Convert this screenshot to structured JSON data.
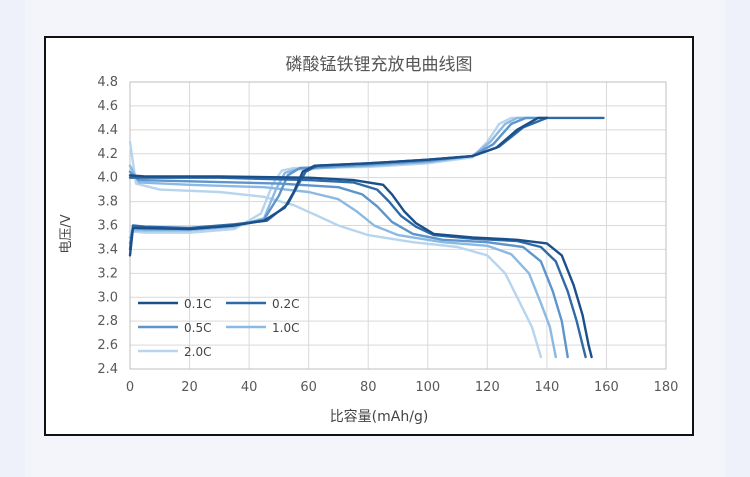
{
  "chart_data": {
    "type": "line",
    "title": "磷酸锰铁锂充放电曲线图",
    "xlabel": "比容量(mAh/g)",
    "ylabel": "电压/V",
    "xlim": [
      0,
      180
    ],
    "ylim": [
      2.4,
      4.8
    ],
    "xticks": [
      "0",
      "20",
      "40",
      "60",
      "80",
      "100",
      "120",
      "140",
      "160",
      "180"
    ],
    "yticks": [
      "2.4",
      "2.6",
      "2.8",
      "3.0",
      "3.2",
      "3.4",
      "3.6",
      "3.8",
      "4.0",
      "4.2",
      "4.4",
      "4.6",
      "4.8"
    ],
    "grid": true,
    "legend_position": "bottom-left",
    "colors": {
      "0.1C": "#1b4f8a",
      "0.2C": "#2f6aa6",
      "0.5C": "#5d95cc",
      "1.0C": "#8cb9e2",
      "2.0C": "#b7d5ef"
    },
    "series": [
      {
        "name": "0.1C",
        "charge": [
          [
            0,
            3.35
          ],
          [
            1,
            3.58
          ],
          [
            5,
            3.58
          ],
          [
            20,
            3.57
          ],
          [
            35,
            3.6
          ],
          [
            45,
            3.64
          ],
          [
            52,
            3.75
          ],
          [
            55,
            3.88
          ],
          [
            58,
            4.05
          ],
          [
            62,
            4.1
          ],
          [
            80,
            4.12
          ],
          [
            100,
            4.15
          ],
          [
            115,
            4.18
          ],
          [
            123,
            4.25
          ],
          [
            130,
            4.4
          ],
          [
            137,
            4.5
          ],
          [
            140,
            4.5
          ]
        ],
        "discharge": [
          [
            0,
            4.02
          ],
          [
            5,
            4.01
          ],
          [
            30,
            4.01
          ],
          [
            60,
            4.0
          ],
          [
            75,
            3.98
          ],
          [
            85,
            3.94
          ],
          [
            88,
            3.86
          ],
          [
            92,
            3.72
          ],
          [
            96,
            3.62
          ],
          [
            102,
            3.53
          ],
          [
            115,
            3.5
          ],
          [
            130,
            3.48
          ],
          [
            140,
            3.45
          ],
          [
            145,
            3.35
          ],
          [
            149,
            3.1
          ],
          [
            152,
            2.85
          ],
          [
            154,
            2.6
          ],
          [
            155,
            2.5
          ]
        ]
      },
      {
        "name": "0.2C",
        "charge": [
          [
            0,
            3.4
          ],
          [
            1,
            3.6
          ],
          [
            5,
            3.59
          ],
          [
            20,
            3.58
          ],
          [
            35,
            3.61
          ],
          [
            46,
            3.64
          ],
          [
            53,
            3.78
          ],
          [
            56,
            3.92
          ],
          [
            59,
            4.05
          ],
          [
            63,
            4.1
          ],
          [
            80,
            4.12
          ],
          [
            100,
            4.15
          ],
          [
            115,
            4.18
          ],
          [
            124,
            4.26
          ],
          [
            132,
            4.42
          ],
          [
            140,
            4.5
          ],
          [
            159,
            4.5
          ]
        ],
        "discharge": [
          [
            0,
            4.0
          ],
          [
            5,
            4.0
          ],
          [
            30,
            4.0
          ],
          [
            60,
            3.98
          ],
          [
            75,
            3.96
          ],
          [
            83,
            3.9
          ],
          [
            87,
            3.8
          ],
          [
            91,
            3.68
          ],
          [
            96,
            3.59
          ],
          [
            102,
            3.52
          ],
          [
            115,
            3.49
          ],
          [
            130,
            3.47
          ],
          [
            138,
            3.42
          ],
          [
            143,
            3.3
          ],
          [
            147,
            3.05
          ],
          [
            150,
            2.8
          ],
          [
            152,
            2.6
          ],
          [
            153,
            2.5
          ]
        ]
      },
      {
        "name": "0.5C",
        "charge": [
          [
            0,
            3.45
          ],
          [
            1,
            3.58
          ],
          [
            5,
            3.57
          ],
          [
            20,
            3.57
          ],
          [
            35,
            3.6
          ],
          [
            45,
            3.65
          ],
          [
            50,
            3.85
          ],
          [
            53,
            4.02
          ],
          [
            57,
            4.08
          ],
          [
            80,
            4.11
          ],
          [
            100,
            4.14
          ],
          [
            115,
            4.18
          ],
          [
            122,
            4.28
          ],
          [
            128,
            4.45
          ],
          [
            133,
            4.5
          ],
          [
            140,
            4.5
          ]
        ],
        "discharge": [
          [
            0,
            4.05
          ],
          [
            3,
            3.98
          ],
          [
            20,
            3.97
          ],
          [
            50,
            3.95
          ],
          [
            70,
            3.92
          ],
          [
            78,
            3.86
          ],
          [
            83,
            3.76
          ],
          [
            88,
            3.63
          ],
          [
            95,
            3.53
          ],
          [
            105,
            3.48
          ],
          [
            120,
            3.46
          ],
          [
            132,
            3.42
          ],
          [
            138,
            3.3
          ],
          [
            142,
            3.05
          ],
          [
            145,
            2.8
          ],
          [
            147,
            2.5
          ]
        ]
      },
      {
        "name": "1.0C",
        "charge": [
          [
            0,
            3.5
          ],
          [
            1,
            3.56
          ],
          [
            5,
            3.56
          ],
          [
            20,
            3.56
          ],
          [
            35,
            3.59
          ],
          [
            45,
            3.66
          ],
          [
            49,
            3.9
          ],
          [
            52,
            4.04
          ],
          [
            56,
            4.07
          ],
          [
            80,
            4.1
          ],
          [
            100,
            4.13
          ],
          [
            115,
            4.18
          ],
          [
            121,
            4.3
          ],
          [
            126,
            4.45
          ],
          [
            130,
            4.5
          ],
          [
            136,
            4.5
          ]
        ],
        "discharge": [
          [
            0,
            4.1
          ],
          [
            3,
            3.96
          ],
          [
            20,
            3.94
          ],
          [
            45,
            3.92
          ],
          [
            60,
            3.88
          ],
          [
            70,
            3.82
          ],
          [
            76,
            3.72
          ],
          [
            82,
            3.6
          ],
          [
            90,
            3.52
          ],
          [
            105,
            3.46
          ],
          [
            120,
            3.43
          ],
          [
            128,
            3.36
          ],
          [
            134,
            3.2
          ],
          [
            138,
            2.95
          ],
          [
            141,
            2.75
          ],
          [
            143,
            2.5
          ]
        ]
      },
      {
        "name": "2.0C",
        "charge": [
          [
            0,
            3.55
          ],
          [
            1,
            3.55
          ],
          [
            5,
            3.54
          ],
          [
            20,
            3.54
          ],
          [
            35,
            3.57
          ],
          [
            44,
            3.7
          ],
          [
            48,
            3.95
          ],
          [
            51,
            4.06
          ],
          [
            55,
            4.08
          ],
          [
            80,
            4.09
          ],
          [
            100,
            4.12
          ],
          [
            115,
            4.17
          ],
          [
            120,
            4.3
          ],
          [
            124,
            4.45
          ],
          [
            128,
            4.5
          ],
          [
            134,
            4.5
          ]
        ],
        "discharge": [
          [
            0,
            4.3
          ],
          [
            2,
            3.95
          ],
          [
            10,
            3.9
          ],
          [
            30,
            3.88
          ],
          [
            45,
            3.84
          ],
          [
            55,
            3.77
          ],
          [
            63,
            3.68
          ],
          [
            70,
            3.6
          ],
          [
            80,
            3.52
          ],
          [
            95,
            3.46
          ],
          [
            110,
            3.42
          ],
          [
            120,
            3.35
          ],
          [
            126,
            3.2
          ],
          [
            131,
            2.95
          ],
          [
            135,
            2.75
          ],
          [
            138,
            2.5
          ]
        ]
      }
    ]
  }
}
